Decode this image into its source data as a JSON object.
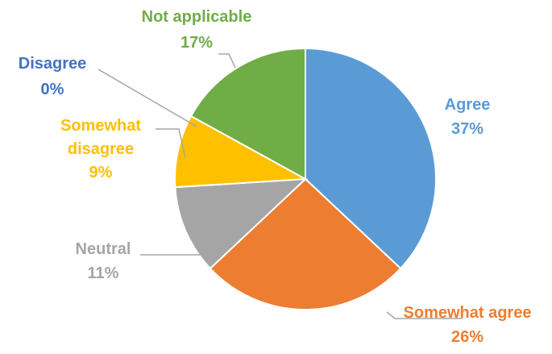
{
  "chart_data": {
    "type": "pie",
    "title": "",
    "slices": [
      {
        "label": "Agree",
        "percent_label": "37%",
        "value": 37,
        "color": "#5B9BD5"
      },
      {
        "label": "Somewhat agree",
        "percent_label": "26%",
        "value": 26,
        "color": "#ED7D31"
      },
      {
        "label": "Neutral",
        "percent_label": "11%",
        "value": 11,
        "color": "#A5A5A5"
      },
      {
        "label": "Somewhat disagree",
        "percent_label": "9%",
        "value": 9,
        "color": "#FFC000"
      },
      {
        "label": "Disagree",
        "percent_label": "0%",
        "value": 0,
        "color": "#4472C4"
      },
      {
        "label": "Not applicable",
        "percent_label": "17%",
        "value": 17,
        "color": "#70AD47"
      }
    ],
    "legend": "none"
  }
}
